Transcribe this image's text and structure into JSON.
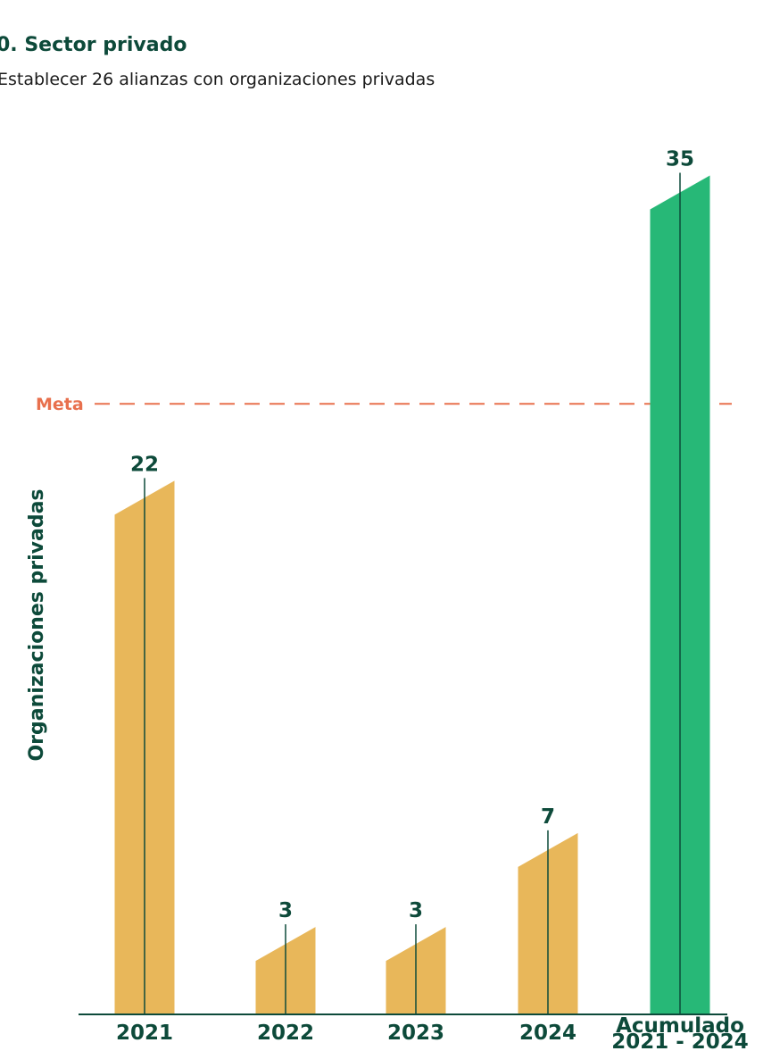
{
  "colors": {
    "text_dark": "#0d4a3a",
    "bar_year": "#e8b75a",
    "bar_total": "#27b877",
    "target_line": "#e8704d",
    "subtitle": "#1a1a1a"
  },
  "chart_data": {
    "type": "bar",
    "title": "0. Sector privado",
    "subtitle": "Establecer 26 alianzas con organizaciones privadas",
    "xlabel": "",
    "ylabel": "Organizaciones privadas",
    "categories": [
      "2021",
      "2022",
      "2023",
      "2024",
      "Acumulado 2021 - 2024"
    ],
    "category_lines": [
      [
        "2021"
      ],
      [
        "2022"
      ],
      [
        "2023"
      ],
      [
        "2024"
      ],
      [
        "Acumulado",
        "2021 - 2024"
      ]
    ],
    "values": [
      22,
      3,
      3,
      7,
      35
    ],
    "value_labels": [
      "22",
      "3",
      "3",
      "7",
      "35"
    ],
    "highlight_index": 4,
    "target": {
      "label": "Meta",
      "value": 26
    },
    "ylim": [
      0,
      36
    ],
    "grid": false,
    "legend": "none"
  }
}
